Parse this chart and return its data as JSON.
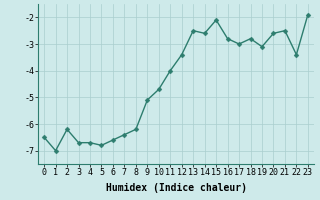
{
  "x": [
    0,
    1,
    2,
    3,
    4,
    5,
    6,
    7,
    8,
    9,
    10,
    11,
    12,
    13,
    14,
    15,
    16,
    17,
    18,
    19,
    20,
    21,
    22,
    23
  ],
  "y": [
    -6.5,
    -7.0,
    -6.2,
    -6.7,
    -6.7,
    -6.8,
    -6.6,
    -6.4,
    -6.2,
    -5.1,
    -4.7,
    -4.0,
    -3.4,
    -2.5,
    -2.6,
    -2.1,
    -2.8,
    -3.0,
    -2.8,
    -3.1,
    -2.6,
    -2.5,
    -3.4,
    -1.9
  ],
  "line_color": "#2d7d6e",
  "marker_color": "#2d7d6e",
  "bg_color": "#ceeaea",
  "grid_color": "#aacece",
  "xlabel": "Humidex (Indice chaleur)",
  "xlim": [
    -0.5,
    23.5
  ],
  "ylim": [
    -7.5,
    -1.5
  ],
  "yticks": [
    -7,
    -6,
    -5,
    -4,
    -3,
    -2
  ],
  "xticks": [
    0,
    1,
    2,
    3,
    4,
    5,
    6,
    7,
    8,
    9,
    10,
    11,
    12,
    13,
    14,
    15,
    16,
    17,
    18,
    19,
    20,
    21,
    22,
    23
  ],
  "line_width": 1.0,
  "marker_size": 2.5,
  "xlabel_fontsize": 7,
  "tick_fontsize": 6
}
